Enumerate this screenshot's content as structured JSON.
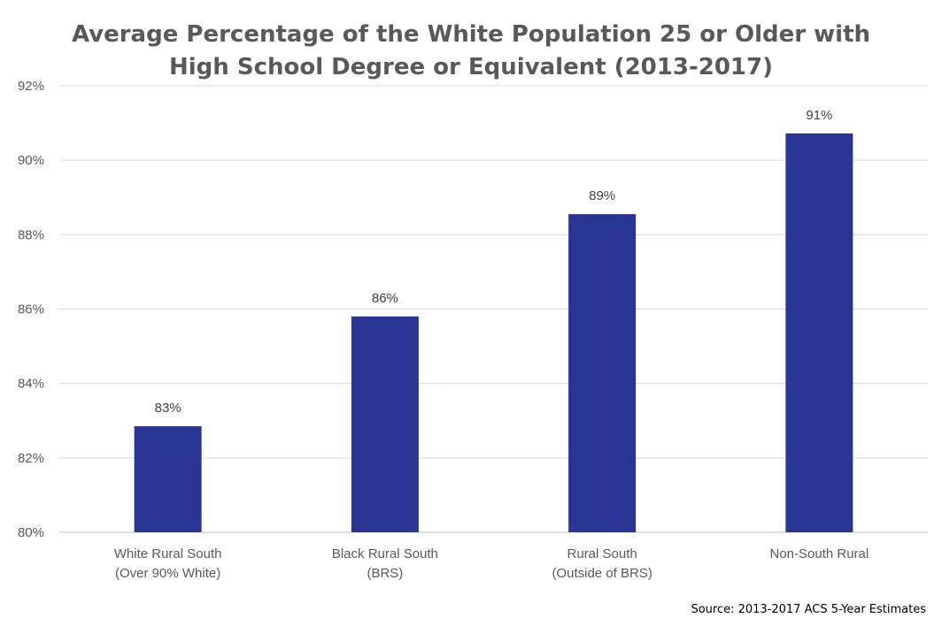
{
  "chart_data": {
    "type": "bar",
    "title_lines": [
      "Average Percentage of the White Population 25 or Older with",
      "High School Degree or Equivalent (2013-2017)"
    ],
    "categories": [
      [
        "White Rural South",
        "(Over 90% White)"
      ],
      [
        "Black Rural South",
        "(BRS)"
      ],
      [
        "Rural South",
        "(Outside of BRS)"
      ],
      [
        "Non-South Rural"
      ]
    ],
    "values": [
      82.85,
      85.8,
      88.55,
      90.72
    ],
    "data_labels": [
      "83%",
      "86%",
      "89%",
      "91%"
    ],
    "ylim": [
      80,
      92
    ],
    "yticks": [
      80,
      82,
      84,
      86,
      88,
      90,
      92
    ],
    "ytick_labels": [
      "80%",
      "82%",
      "84%",
      "86%",
      "88%",
      "90%",
      "92%"
    ],
    "grid": true,
    "bar_color": "#283593",
    "grid_color": "#d9d9d9"
  },
  "source": "Source: 2013-2017 ACS 5-Year Estimates"
}
